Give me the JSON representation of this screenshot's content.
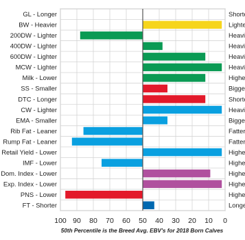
{
  "chart_data": {
    "type": "bar",
    "orientation": "horizontal",
    "x_axis_reversed": true,
    "xlim": [
      100,
      0
    ],
    "xticks": [
      "100",
      "90",
      "80",
      "70",
      "60",
      "50",
      "40",
      "30",
      "20",
      "10",
      "0"
    ],
    "center_line": 50,
    "grid": true,
    "footnote": "50th Percentile is the Breed Avg. EBV's for 2018 Born Calves",
    "rows": [
      {
        "left_label": "GL - Longer",
        "right_label": "Shorter",
        "value": null,
        "color": ""
      },
      {
        "left_label": "BW - Heavier",
        "right_label": "Lighter",
        "value": 2,
        "color": "#f6d51c"
      },
      {
        "left_label": "200DW - Lighter",
        "right_label": "Heavier",
        "value": 88,
        "color": "#0a9a54"
      },
      {
        "left_label": "400DW - Lighter",
        "right_label": "Heavier",
        "value": 38,
        "color": "#0a9a54"
      },
      {
        "left_label": "600DW - Lighter",
        "right_label": "Heavier",
        "value": 12,
        "color": "#0a9a54"
      },
      {
        "left_label": "MCW - Lighter",
        "right_label": "Heavier",
        "value": 2,
        "color": "#0a9a54"
      },
      {
        "left_label": "Milk - Lower",
        "right_label": "Higher",
        "value": 12,
        "color": "#0a9a54"
      },
      {
        "left_label": "SS - Smaller",
        "right_label": "Bigger",
        "value": 35,
        "color": "#e3192a"
      },
      {
        "left_label": "DTC - Longer",
        "right_label": "Shorter",
        "value": 12,
        "color": "#e3192a"
      },
      {
        "left_label": "CW - Lighter",
        "right_label": "Heavier",
        "value": 2,
        "color": "#0aa0e0"
      },
      {
        "left_label": "EMA - Smaller",
        "right_label": "Bigger",
        "value": 35,
        "color": "#0aa0e0"
      },
      {
        "left_label": "Rib Fat - Leaner",
        "right_label": "Fatter",
        "value": 86,
        "color": "#0aa0e0"
      },
      {
        "left_label": "Rump Fat - Leaner",
        "right_label": "Fatter",
        "value": 93,
        "color": "#0aa0e0"
      },
      {
        "left_label": "Retail Yield - Lower",
        "right_label": "Higher",
        "value": 2,
        "color": "#0aa0e0"
      },
      {
        "left_label": "IMF - Lower",
        "right_label": "Higher",
        "value": 75,
        "color": "#0aa0e0"
      },
      {
        "left_label": "Dom. Index - Lower",
        "right_label": "Higher",
        "value": 9,
        "color": "#b0509e"
      },
      {
        "left_label": "Exp. Index - Lower",
        "right_label": "Higher",
        "value": 2,
        "color": "#b0509e"
      },
      {
        "left_label": "PNS - Lower",
        "right_label": "Higher",
        "value": 97,
        "color": "#e3192a"
      },
      {
        "left_label": "FT - Shorter",
        "right_label": "Longer",
        "value": 43,
        "color": "#0068b0"
      }
    ]
  }
}
